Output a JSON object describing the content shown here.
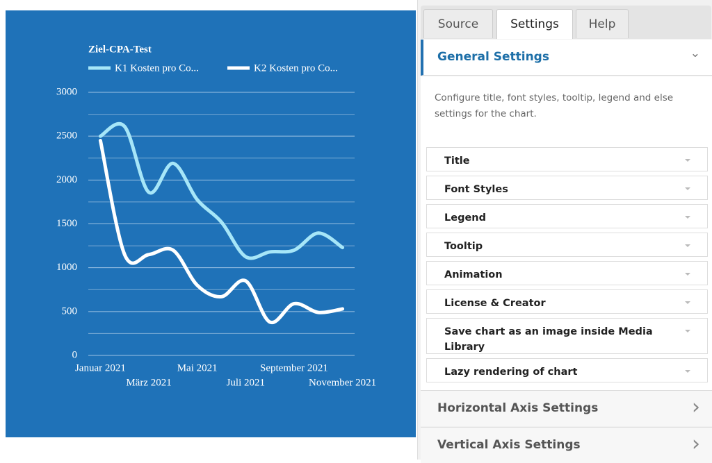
{
  "chart_data": {
    "type": "line",
    "title": "Ziel-CPA-Test",
    "categories": [
      "Januar 2021",
      null,
      "März 2021",
      null,
      "Mai 2021",
      null,
      "Juli 2021",
      null,
      "September 2021",
      null,
      "November 2021"
    ],
    "series": [
      {
        "name": "K1 Kosten pro Co...",
        "color": "#a6e6f8",
        "values": [
          2500,
          2610,
          1860,
          2190,
          1775,
          1520,
          1125,
          1180,
          1200,
          1395,
          1230
        ]
      },
      {
        "name": "K2 Kosten pro Co...",
        "color": "#ffffff",
        "values": [
          2450,
          1150,
          1150,
          1200,
          800,
          670,
          850,
          380,
          590,
          490,
          530
        ]
      }
    ],
    "ylim": [
      0,
      3000
    ],
    "yticks": [
      0,
      500,
      1000,
      1500,
      2000,
      2500,
      3000
    ],
    "grid": true,
    "minor_grid": true,
    "background": "#1f72b8",
    "legend": "top"
  },
  "panel": {
    "tabs": [
      "Source",
      "Settings",
      "Help"
    ],
    "active_tab": "Settings",
    "section": "General Settings",
    "description": "Configure title, font styles, tooltip, legend and else settings for the chart.",
    "items": [
      "Title",
      "Font Styles",
      "Legend",
      "Tooltip",
      "Animation",
      "License & Creator",
      "Save chart as an image inside Media Library",
      "Lazy rendering of chart"
    ],
    "sections": [
      "Horizontal Axis Settings",
      "Vertical Axis Settings"
    ]
  }
}
